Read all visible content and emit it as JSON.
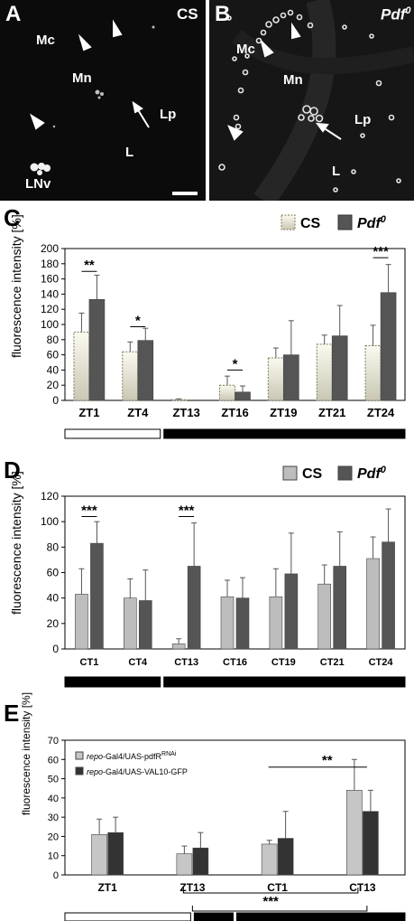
{
  "panels": {
    "A": {
      "letter": "A",
      "genotype": "CS",
      "labels": {
        "mc": "Mc",
        "mn": "Mn",
        "lp": "Lp",
        "l": "L",
        "lnv": "LNv"
      }
    },
    "B": {
      "letter": "B",
      "genotype_base": "Pdf",
      "genotype_sup": "0",
      "labels": {
        "mc": "Mc",
        "mn": "Mn",
        "lp": "Lp",
        "l": "L"
      }
    }
  },
  "chart_data": [
    {
      "id": "C",
      "letter": "C",
      "type": "bar",
      "ylabel": "fluorescence intensity [%]",
      "ylim": [
        0,
        200
      ],
      "yticks": [
        0,
        20,
        40,
        60,
        80,
        100,
        120,
        140,
        160,
        180,
        200
      ],
      "categories": [
        "ZT1",
        "ZT4",
        "ZT13",
        "ZT16",
        "ZT19",
        "ZT21",
        "ZT24"
      ],
      "series": [
        {
          "name": "CS",
          "color": "#ede9cf",
          "values": [
            90,
            64,
            1,
            20,
            56,
            74,
            72
          ],
          "errors": [
            25,
            13,
            1,
            12,
            13,
            12,
            27
          ]
        },
        {
          "name": "Pdf0",
          "name_base": "Pdf",
          "name_sup": "0",
          "color": "#555555",
          "values": [
            133,
            79,
            0,
            11,
            60,
            85,
            142
          ],
          "errors": [
            32,
            16,
            0,
            8,
            45,
            40,
            37
          ]
        }
      ],
      "significance": [
        {
          "category": "ZT1",
          "label": "**",
          "y": 170
        },
        {
          "category": "ZT4",
          "label": "*",
          "y": 97
        },
        {
          "category": "ZT16",
          "label": "*",
          "y": 40
        },
        {
          "category": "ZT24",
          "label": "***",
          "y": 188
        }
      ],
      "light_bar": [
        {
          "start": 0,
          "end": 2,
          "state": "light"
        },
        {
          "start": 2,
          "end": 7,
          "state": "dark"
        }
      ]
    },
    {
      "id": "D",
      "letter": "D",
      "type": "bar",
      "ylabel": "fluorescence intensity [%]",
      "ylim": [
        0,
        120
      ],
      "yticks": [
        0,
        20,
        40,
        60,
        80,
        100,
        120
      ],
      "categories": [
        "CT1",
        "CT4",
        "CT13",
        "CT16",
        "CT19",
        "CT21",
        "CT24"
      ],
      "series": [
        {
          "name": "CS",
          "color": "#bdbdbd",
          "values": [
            43,
            40,
            4,
            41,
            41,
            51,
            71
          ],
          "errors": [
            20,
            15,
            4,
            13,
            22,
            15,
            17
          ]
        },
        {
          "name": "Pdf0",
          "name_base": "Pdf",
          "name_sup": "0",
          "color": "#555555",
          "values": [
            83,
            38,
            65,
            40,
            59,
            65,
            84
          ],
          "errors": [
            17,
            24,
            34,
            16,
            32,
            27,
            26
          ]
        }
      ],
      "significance": [
        {
          "category": "CT1",
          "label": "***",
          "y": 104
        },
        {
          "category": "CT13",
          "label": "***",
          "y": 104
        }
      ],
      "light_bar": [
        {
          "start": 0,
          "end": 2,
          "state": "dark"
        },
        {
          "start": 2,
          "end": 7,
          "state": "dark"
        }
      ]
    },
    {
      "id": "E",
      "letter": "E",
      "type": "bar",
      "ylabel": "fluorescence intensity [%]",
      "ylim": [
        0,
        70
      ],
      "yticks": [
        0,
        10,
        20,
        30,
        40,
        50,
        60,
        70
      ],
      "categories": [
        "ZT1",
        "ZT13",
        "CT1",
        "CT13"
      ],
      "series": [
        {
          "name_base": "repo",
          "name_rest": "-Gal4/UAS-pdfR",
          "name_sup": "RNAi",
          "color": "#c6c6c6",
          "values": [
            21,
            11,
            16,
            44
          ],
          "errors": [
            8,
            4,
            2,
            16
          ]
        },
        {
          "name_base": "repo",
          "name_rest": "-Gal4/UAS-VAL10-GFP",
          "name_sup": "",
          "color": "#333333",
          "values": [
            22,
            14,
            19,
            33
          ],
          "errors": [
            8,
            8,
            14,
            11
          ]
        }
      ],
      "significance_top": {
        "from": 2,
        "to": 3,
        "label": "**",
        "y": 56
      },
      "significance_bottom": [
        {
          "from": 1,
          "to": 3,
          "label": "***"
        },
        {
          "from": 1,
          "to": 3,
          "label": "**"
        }
      ],
      "light_bar": [
        {
          "start": 0,
          "end": 1.5,
          "state": "light"
        },
        {
          "start": 1.5,
          "end": 2,
          "state": "dark"
        },
        {
          "start": 2,
          "end": 4,
          "state": "dark"
        }
      ]
    }
  ]
}
